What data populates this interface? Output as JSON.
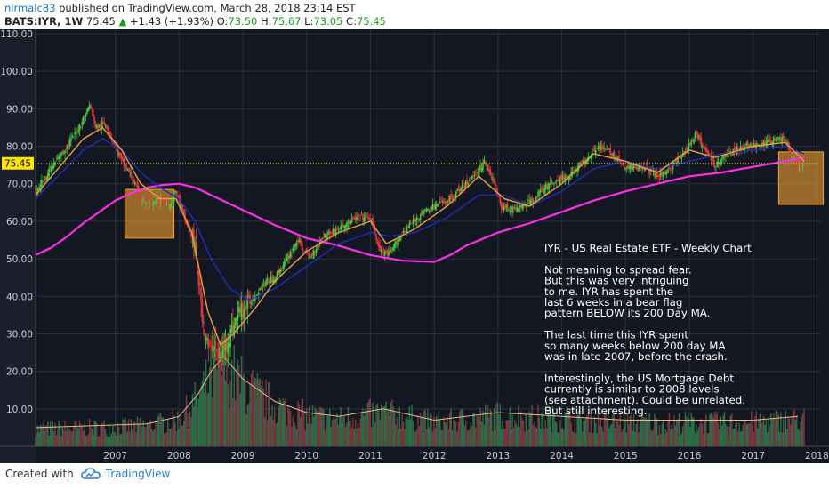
{
  "header": {
    "user": "nirmalc83",
    "published_text": "published on TradingView.com, March 28, 2018 23:14 EST",
    "symbol": "BATS:IYR, 1W",
    "last": "75.45",
    "up_glyph": "▲",
    "change": "+1.43 (+1.93%)",
    "o_label": "O:",
    "o_val": "73.50",
    "h_label": "H:",
    "h_val": "75.67",
    "l_label": "L:",
    "l_val": "73.05",
    "c_label": "C:",
    "c_val": "75.45"
  },
  "footer": {
    "created_with": "Created with",
    "brand": "TradingView",
    "logo_icon": "tradingview-cloud-icon"
  },
  "colors": {
    "background": "#131722",
    "grid": "#2a2f3c",
    "up": "#3cd13c",
    "down": "#e8393b",
    "ma200": "#ff2fe6",
    "ma_blue": "#1f2fb8",
    "ma_orange": "#e7a33e",
    "highlight": "#f0a030",
    "price_line": "#d4d21a",
    "price_label_bg": "#ffe500",
    "volume_avg": "#f2b48a"
  },
  "chart_data": {
    "type": "candlestick",
    "title": "",
    "xlabel": "",
    "ylabel": "",
    "ylim": [
      0,
      110
    ],
    "y_ticks": [
      "110.00",
      "100.00",
      "90.00",
      "80.00",
      "70.00",
      "60.00",
      "50.00",
      "40.00",
      "30.00",
      "20.00",
      "10.00"
    ],
    "x_ticks": [
      "2007",
      "2008",
      "2009",
      "2010",
      "2011",
      "2012",
      "2013",
      "2014",
      "2015",
      "2016",
      "2017",
      "2018"
    ],
    "x_range": [
      2006.25,
      2018.55
    ],
    "current_price": 75.45,
    "current_price_label": "75.45",
    "grid": true,
    "price_path": [
      [
        2006.25,
        68
      ],
      [
        2006.45,
        73
      ],
      [
        2006.7,
        79
      ],
      [
        2006.9,
        84
      ],
      [
        2007.1,
        91
      ],
      [
        2007.2,
        85
      ],
      [
        2007.35,
        86
      ],
      [
        2007.5,
        80
      ],
      [
        2007.6,
        76
      ],
      [
        2007.75,
        72
      ],
      [
        2007.9,
        66
      ],
      [
        2008.05,
        64
      ],
      [
        2008.2,
        66
      ],
      [
        2008.35,
        64
      ],
      [
        2008.45,
        68
      ],
      [
        2008.6,
        60
      ],
      [
        2008.72,
        55
      ],
      [
        2008.8,
        45
      ],
      [
        2008.88,
        33
      ],
      [
        2008.97,
        25
      ],
      [
        2009.05,
        28
      ],
      [
        2009.12,
        23
      ],
      [
        2009.2,
        26
      ],
      [
        2009.3,
        30
      ],
      [
        2009.45,
        36
      ],
      [
        2009.6,
        38
      ],
      [
        2009.8,
        43
      ],
      [
        2010.0,
        45
      ],
      [
        2010.2,
        50
      ],
      [
        2010.35,
        55
      ],
      [
        2010.55,
        50
      ],
      [
        2010.75,
        56
      ],
      [
        2011.0,
        58
      ],
      [
        2011.3,
        61
      ],
      [
        2011.5,
        61
      ],
      [
        2011.65,
        52
      ],
      [
        2011.8,
        51
      ],
      [
        2012.0,
        57
      ],
      [
        2012.3,
        62
      ],
      [
        2012.5,
        64
      ],
      [
        2012.75,
        66
      ],
      [
        2013.0,
        70
      ],
      [
        2013.3,
        76
      ],
      [
        2013.42,
        71
      ],
      [
        2013.55,
        64
      ],
      [
        2013.75,
        63
      ],
      [
        2014.0,
        65
      ],
      [
        2014.3,
        70
      ],
      [
        2014.6,
        72
      ],
      [
        2014.85,
        76
      ],
      [
        2015.05,
        80
      ],
      [
        2015.3,
        78
      ],
      [
        2015.5,
        74
      ],
      [
        2015.75,
        75
      ],
      [
        2016.0,
        72
      ],
      [
        2016.2,
        74
      ],
      [
        2016.45,
        79
      ],
      [
        2016.6,
        83
      ],
      [
        2016.75,
        79
      ],
      [
        2016.9,
        75
      ],
      [
        2017.1,
        78
      ],
      [
        2017.35,
        80
      ],
      [
        2017.6,
        80
      ],
      [
        2017.85,
        82
      ],
      [
        2018.0,
        82
      ],
      [
        2018.1,
        78
      ],
      [
        2018.2,
        74
      ],
      [
        2018.3,
        75.45
      ]
    ],
    "series": [
      {
        "name": "",
        "color_key": "ma200",
        "points": [
          [
            2006.25,
            51
          ],
          [
            2006.5,
            53
          ],
          [
            2006.75,
            56
          ],
          [
            2007.0,
            59.5
          ],
          [
            2007.25,
            62.5
          ],
          [
            2007.5,
            65.5
          ],
          [
            2007.75,
            67.5
          ],
          [
            2008.0,
            69
          ],
          [
            2008.25,
            69.7
          ],
          [
            2008.5,
            70
          ],
          [
            2008.75,
            69
          ],
          [
            2009.0,
            67
          ],
          [
            2009.5,
            63
          ],
          [
            2010.0,
            59
          ],
          [
            2010.5,
            55.5
          ],
          [
            2011.0,
            53.5
          ],
          [
            2011.5,
            51
          ],
          [
            2012.0,
            49.5
          ],
          [
            2012.5,
            49.2
          ],
          [
            2012.75,
            51
          ],
          [
            2013.0,
            53.5
          ],
          [
            2013.5,
            57
          ],
          [
            2014.0,
            59.5
          ],
          [
            2014.5,
            62.5
          ],
          [
            2015.0,
            65.5
          ],
          [
            2015.5,
            68
          ],
          [
            2016.0,
            70
          ],
          [
            2016.5,
            72
          ],
          [
            2017.0,
            73
          ],
          [
            2017.5,
            74.5
          ],
          [
            2018.0,
            76
          ],
          [
            2018.3,
            77
          ]
        ]
      },
      {
        "name": "",
        "color_key": "ma_blue",
        "points": [
          [
            2006.25,
            66
          ],
          [
            2006.6,
            72
          ],
          [
            2007.0,
            79
          ],
          [
            2007.3,
            82
          ],
          [
            2007.6,
            79
          ],
          [
            2007.9,
            73
          ],
          [
            2008.2,
            69
          ],
          [
            2008.5,
            66
          ],
          [
            2008.75,
            60
          ],
          [
            2009.0,
            50
          ],
          [
            2009.3,
            42
          ],
          [
            2009.6,
            39
          ],
          [
            2010.0,
            42
          ],
          [
            2010.5,
            48
          ],
          [
            2011.0,
            54
          ],
          [
            2011.5,
            57
          ],
          [
            2011.8,
            56
          ],
          [
            2012.2,
            57
          ],
          [
            2012.7,
            61
          ],
          [
            2013.2,
            67
          ],
          [
            2013.6,
            67
          ],
          [
            2014.0,
            64
          ],
          [
            2014.5,
            68
          ],
          [
            2015.0,
            74
          ],
          [
            2015.5,
            76
          ],
          [
            2016.0,
            74
          ],
          [
            2016.5,
            76
          ],
          [
            2017.0,
            78
          ],
          [
            2017.5,
            79
          ],
          [
            2018.0,
            80
          ],
          [
            2018.3,
            78
          ]
        ]
      },
      {
        "name": "",
        "color_key": "ma_orange",
        "points": [
          [
            2006.25,
            67
          ],
          [
            2006.6,
            74
          ],
          [
            2007.0,
            82
          ],
          [
            2007.3,
            85
          ],
          [
            2007.6,
            79
          ],
          [
            2007.9,
            70
          ],
          [
            2008.2,
            66
          ],
          [
            2008.45,
            66
          ],
          [
            2008.7,
            57
          ],
          [
            2008.95,
            36
          ],
          [
            2009.15,
            27
          ],
          [
            2009.35,
            30
          ],
          [
            2009.7,
            37
          ],
          [
            2010.0,
            44
          ],
          [
            2010.5,
            52
          ],
          [
            2011.0,
            57
          ],
          [
            2011.5,
            60
          ],
          [
            2011.75,
            54
          ],
          [
            2012.2,
            58
          ],
          [
            2012.7,
            64
          ],
          [
            2013.2,
            72
          ],
          [
            2013.6,
            66
          ],
          [
            2014.0,
            64
          ],
          [
            2014.5,
            70
          ],
          [
            2015.0,
            78
          ],
          [
            2015.5,
            76
          ],
          [
            2016.0,
            73
          ],
          [
            2016.5,
            79
          ],
          [
            2016.9,
            77
          ],
          [
            2017.5,
            80
          ],
          [
            2018.0,
            81
          ],
          [
            2018.3,
            76
          ]
        ]
      }
    ],
    "volume_envelope": [
      [
        2006.25,
        5
      ],
      [
        2008.0,
        6
      ],
      [
        2008.5,
        8
      ],
      [
        2008.8,
        14
      ],
      [
        2009.0,
        20
      ],
      [
        2009.2,
        24
      ],
      [
        2009.5,
        18
      ],
      [
        2010.0,
        12
      ],
      [
        2010.5,
        9
      ],
      [
        2011.0,
        8
      ],
      [
        2011.7,
        10
      ],
      [
        2012.5,
        7
      ],
      [
        2013.5,
        9
      ],
      [
        2014.5,
        8
      ],
      [
        2015.5,
        7
      ],
      [
        2016.5,
        7
      ],
      [
        2017.5,
        7
      ],
      [
        2018.2,
        8
      ]
    ],
    "highlight_boxes": [
      {
        "x0": 2007.65,
        "x1": 2008.42,
        "y0": 55.5,
        "y1": 68.5
      },
      {
        "x0": 2017.9,
        "x1": 2018.6,
        "y0": 64.5,
        "y1": 78.5
      }
    ],
    "annotation": [
      "IYR - US Real Estate ETF - Weekly Chart",
      "",
      "Not meaning to spread fear.",
      "But this was very intriguing",
      "to me. IYR has spent the",
      "last 6 weeks in a bear flag",
      "pattern BELOW its 200 Day MA.",
      "",
      "The last time this IYR spent",
      "so many weeks below 200 day MA",
      "was in late 2007, before the crash.",
      "",
      "Interestingly, the US Mortgage Debt",
      "currently is similar to 2008 levels",
      "(see attachment). Could be unrelated.",
      "But still interesting."
    ]
  }
}
